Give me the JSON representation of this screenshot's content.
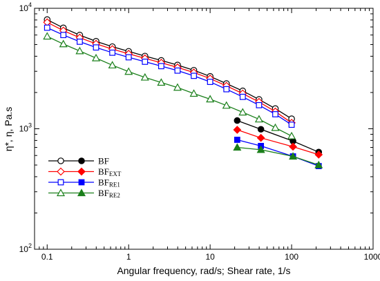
{
  "chart_data": {
    "type": "scatter",
    "xlabel": "Angular frequency, rad/s; Shear rate, 1/s",
    "ylabel": "η*, η, Pa.s",
    "xscale": "log",
    "yscale": "log",
    "xlim": [
      0.07,
      1000
    ],
    "ylim": [
      100,
      10000
    ],
    "grid": false,
    "legend_position": "left-middle",
    "x_ticks": [
      {
        "value": 0.1,
        "label": "0.1"
      },
      {
        "value": 1,
        "label": "1"
      },
      {
        "value": 10,
        "label": "10"
      },
      {
        "value": 100,
        "label": "100"
      },
      {
        "value": 1000,
        "label": "1000"
      }
    ],
    "y_ticks": [
      {
        "value": 100,
        "base": "10",
        "exp": "2"
      },
      {
        "value": 1000,
        "base": "10",
        "exp": "3"
      },
      {
        "value": 10000,
        "base": "10",
        "exp": "4"
      }
    ],
    "series": [
      {
        "label": "BF",
        "label_sub": "",
        "color": "#000000",
        "marker": "circle",
        "oscillatory": {
          "x": [
            0.1,
            0.158,
            0.251,
            0.398,
            0.631,
            1.0,
            1.585,
            2.512,
            3.981,
            6.31,
            10.0,
            15.85,
            25.12,
            39.81,
            63.1,
            100.0
          ],
          "y": [
            8050,
            6870,
            5990,
            5320,
            4800,
            4390,
            4010,
            3690,
            3380,
            3060,
            2720,
            2370,
            2060,
            1750,
            1470,
            1210
          ]
        },
        "steady": {
          "x": [
            21.5,
            42.0,
            104.0,
            215.0
          ],
          "y": [
            1170,
            990,
            790,
            640
          ]
        }
      },
      {
        "label": "BF",
        "label_sub": "EXT",
        "color": "#ff0000",
        "marker": "diamond",
        "oscillatory": {
          "x": [
            0.1,
            0.158,
            0.251,
            0.398,
            0.631,
            1.0,
            1.585,
            2.512,
            3.981,
            6.31,
            10.0,
            15.85,
            25.12,
            39.81,
            63.1,
            100.0
          ],
          "y": [
            7650,
            6530,
            5700,
            5070,
            4580,
            4190,
            3840,
            3530,
            3230,
            2930,
            2610,
            2270,
            1960,
            1670,
            1390,
            1120
          ]
        },
        "steady": {
          "x": [
            21.5,
            42.0,
            104.0,
            215.0
          ],
          "y": [
            980,
            840,
            710,
            610
          ]
        }
      },
      {
        "label": "BF",
        "label_sub": "RE1",
        "color": "#0000ff",
        "marker": "square",
        "oscillatory": {
          "x": [
            0.1,
            0.158,
            0.251,
            0.398,
            0.631,
            1.0,
            1.585,
            2.512,
            3.981,
            6.31,
            10.0,
            15.85,
            25.12,
            39.81,
            63.1,
            100.0
          ],
          "y": [
            6900,
            6000,
            5280,
            4730,
            4280,
            3920,
            3600,
            3310,
            3040,
            2750,
            2450,
            2130,
            1840,
            1570,
            1320,
            1080
          ]
        },
        "steady": {
          "x": [
            21.5,
            42.0,
            104.0,
            215.0
          ],
          "y": [
            810,
            720,
            590,
            490
          ]
        }
      },
      {
        "label": "BF",
        "label_sub": "RE2",
        "color": "#1a7f1a",
        "marker": "triangle",
        "oscillatory": {
          "x": [
            0.1,
            0.158,
            0.251,
            0.398,
            0.631,
            1.0,
            1.585,
            2.512,
            3.981,
            6.31,
            10.0,
            15.85,
            25.12,
            39.81,
            63.1,
            100.0
          ],
          "y": [
            5850,
            5050,
            4420,
            3860,
            3370,
            2980,
            2670,
            2420,
            2200,
            1960,
            1760,
            1560,
            1370,
            1200,
            1020,
            870
          ]
        },
        "steady": {
          "x": [
            21.5,
            42.0,
            104.0,
            215.0
          ],
          "y": [
            700,
            670,
            590,
            500
          ]
        }
      }
    ]
  }
}
